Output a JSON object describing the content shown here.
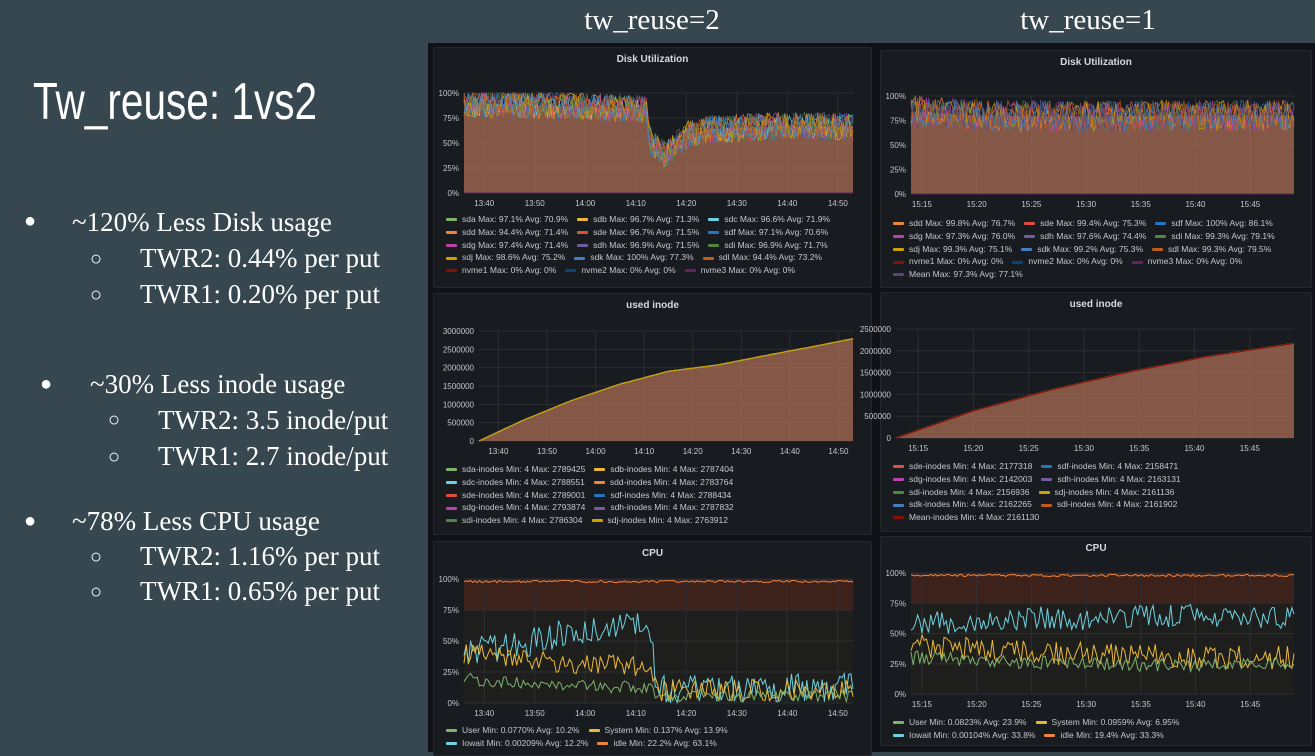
{
  "slide": {
    "title": "Tw_reuse: 1vs2",
    "col_left_header": "tw_reuse=2",
    "col_right_header": "tw_reuse=1",
    "bullets": [
      {
        "text": "~120% Less Disk usage",
        "subs": [
          "TWR2: 0.44% per put",
          "TWR1: 0.20% per put"
        ]
      },
      {
        "text": "~30% Less inode usage",
        "subs": [
          "TWR2: 3.5 inode/put",
          "TWR1: 2.7 inode/put"
        ]
      },
      {
        "text": "~78% Less CPU usage",
        "subs": [
          "TWR2: 1.16% per put",
          "TWR1: 0.65% per put"
        ]
      }
    ]
  },
  "chart_data": [
    {
      "id": "disk2",
      "type": "area",
      "title": "Disk Utilization",
      "xrange": [
        "13:36",
        "14:53"
      ],
      "xticks": [
        "13:40",
        "13:50",
        "14:00",
        "14:10",
        "14:20",
        "14:30",
        "14:40",
        "14:50"
      ],
      "ylim": [
        0,
        100
      ],
      "yticks": [
        "0%",
        "25%",
        "50%",
        "75%",
        "100%"
      ],
      "yvals": [
        0,
        25,
        50,
        75,
        100
      ],
      "profile": {
        "x": [
          "13:36",
          "13:45",
          "13:55",
          "14:05",
          "14:12",
          "14:13",
          "14:16",
          "14:20",
          "14:25",
          "14:35",
          "14:45",
          "14:53"
        ],
        "y": [
          90,
          89,
          87,
          85,
          84,
          50,
          38,
          58,
          64,
          66,
          67,
          66
        ]
      },
      "noise": 14,
      "legend": [
        {
          "label": "sda  Max: 97.1%  Avg: 70.9%",
          "color": "#7eb26d"
        },
        {
          "label": "sdb  Max: 96.7%  Avg: 71.3%",
          "color": "#eab839"
        },
        {
          "label": "sdc  Max: 96.6%  Avg: 71.9%",
          "color": "#6ed0e0"
        },
        {
          "label": "sdd  Max: 94.4%  Avg: 71.4%",
          "color": "#ef843c"
        },
        {
          "label": "sde  Max: 96.7%  Avg: 71.5%",
          "color": "#e24d42"
        },
        {
          "label": "sdf  Max: 97.1%  Avg: 70.6%",
          "color": "#1f78c1"
        },
        {
          "label": "sdg  Max: 97.4%  Avg: 71.4%",
          "color": "#ba43a9"
        },
        {
          "label": "sdh  Max: 96.9%  Avg: 71.5%",
          "color": "#705da0"
        },
        {
          "label": "sdi  Max: 96.9%  Avg: 71.7%",
          "color": "#508642"
        },
        {
          "label": "sdj  Max: 98.6%  Avg: 75.2%",
          "color": "#cca300"
        },
        {
          "label": "sdk  Max: 100%  Avg: 77.3%",
          "color": "#447ebc"
        },
        {
          "label": "sdl  Max: 94.4%  Avg: 73.2%",
          "color": "#c15c17"
        },
        {
          "label": "nvme1  Max: 0%  Avg: 0%",
          "color": "#890f02",
          "zero": true
        },
        {
          "label": "nvme2  Max: 0%  Avg: 0%",
          "color": "#0a437c",
          "zero": true
        },
        {
          "label": "nvme3  Max: 0%  Avg: 0%",
          "color": "#6d1f62",
          "zero": true
        }
      ]
    },
    {
      "id": "disk1",
      "type": "area",
      "title": "Disk Utilization",
      "xrange": [
        "15:14",
        "15:49"
      ],
      "xticks": [
        "15:15",
        "15:20",
        "15:25",
        "15:30",
        "15:35",
        "15:40",
        "15:45"
      ],
      "ylim": [
        0,
        100
      ],
      "yticks": [
        "0%",
        "25%",
        "50%",
        "75%",
        "100%"
      ],
      "yvals": [
        0,
        25,
        50,
        75,
        100
      ],
      "profile": {
        "x": [
          "15:14",
          "15:20",
          "15:30",
          "15:40",
          "15:49"
        ],
        "y": [
          84,
          80,
          79,
          80,
          80
        ]
      },
      "noise": 16,
      "legend": [
        {
          "label": "sdd  Max: 99.8%  Avg: 76.7%",
          "color": "#ef843c"
        },
        {
          "label": "sde  Max: 99.4%  Avg: 75.3%",
          "color": "#e24d42"
        },
        {
          "label": "sdf  Max: 100%  Avg: 86.1%",
          "color": "#1f78c1"
        },
        {
          "label": "sdg  Max: 97.3%  Avg: 76.0%",
          "color": "#ba43a9"
        },
        {
          "label": "sdh  Max: 97.6%  Avg: 74.4%",
          "color": "#705da0"
        },
        {
          "label": "sdi  Max: 99.3%  Avg: 79.1%",
          "color": "#508642"
        },
        {
          "label": "sdj  Max: 99.3%  Avg: 75.1%",
          "color": "#cca300"
        },
        {
          "label": "sdk  Max: 99.2%  Avg: 75.3%",
          "color": "#447ebc"
        },
        {
          "label": "sdl  Max: 99.3%  Avg: 79.5%",
          "color": "#c15c17"
        },
        {
          "label": "nvme1  Max: 0%  Avg: 0%",
          "color": "#890f02",
          "zero": true
        },
        {
          "label": "nvme2  Max: 0%  Avg: 0%",
          "color": "#0a437c",
          "zero": true
        },
        {
          "label": "nvme3  Max: 0%  Avg: 0%",
          "color": "#6d1f62",
          "zero": true
        },
        {
          "label": "Mean  Max: 97.3%  Avg: 77.1%",
          "color": "#584477"
        }
      ]
    },
    {
      "id": "inode2",
      "type": "area",
      "title": "used inode",
      "xrange": [
        "13:36",
        "14:53"
      ],
      "xticks": [
        "13:40",
        "13:50",
        "14:00",
        "14:10",
        "14:20",
        "14:30",
        "14:40",
        "14:50"
      ],
      "ylim": [
        0,
        3000000
      ],
      "yticks": [
        "0",
        "500000",
        "1000000",
        "1500000",
        "2000000",
        "2500000",
        "3000000"
      ],
      "yvals": [
        0,
        500000,
        1000000,
        1500000,
        2000000,
        2500000,
        3000000
      ],
      "profile": {
        "x": [
          "13:36",
          "13:45",
          "13:55",
          "14:05",
          "14:15",
          "14:25",
          "14:35",
          "14:45",
          "14:53"
        ],
        "y": [
          0,
          560000,
          1100000,
          1550000,
          1900000,
          2070000,
          2330000,
          2580000,
          2790000
        ]
      },
      "noise": 0,
      "legend": [
        {
          "label": "sda-inodes  Min: 4  Max: 2789425",
          "color": "#7eb26d"
        },
        {
          "label": "sdb-inodes  Min: 4  Max: 2787404",
          "color": "#eab839"
        },
        {
          "label": "sdc-inodes  Min: 4  Max: 2788551",
          "color": "#6ed0e0"
        },
        {
          "label": "sdd-inodes  Min: 4  Max: 2783764",
          "color": "#ef843c"
        },
        {
          "label": "sde-inodes  Min: 4  Max: 2789001",
          "color": "#e24d42"
        },
        {
          "label": "sdf-inodes  Min: 4  Max: 2788434",
          "color": "#1f78c1"
        },
        {
          "label": "sdg-inodes  Min: 4  Max: 2793874",
          "color": "#ba43a9"
        },
        {
          "label": "sdh-inodes  Min: 4  Max: 2787832",
          "color": "#705da0"
        },
        {
          "label": "sdi-inodes  Min: 4  Max: 2786304",
          "color": "#508642"
        },
        {
          "label": "sdj-inodes  Min: 4  Max: 2763912",
          "color": "#cca300"
        }
      ]
    },
    {
      "id": "inode1",
      "type": "area",
      "title": "used inode",
      "xrange": [
        "15:13",
        "15:49"
      ],
      "xticks": [
        "15:15",
        "15:20",
        "15:25",
        "15:30",
        "15:35",
        "15:40",
        "15:45"
      ],
      "ylim": [
        0,
        2500000
      ],
      "yticks": [
        "0",
        "500000",
        "1000000",
        "1500000",
        "2000000",
        "2500000"
      ],
      "yvals": [
        0,
        500000,
        1000000,
        1500000,
        2000000,
        2500000
      ],
      "profile": {
        "x": [
          "15:13",
          "15:20",
          "15:27",
          "15:34",
          "15:41",
          "15:49"
        ],
        "y": [
          0,
          620000,
          1100000,
          1510000,
          1860000,
          2170000
        ]
      },
      "noise": 0,
      "legend": [
        {
          "label": "sde-inodes  Min: 4  Max: 2177318",
          "color": "#e24d42"
        },
        {
          "label": "sdf-inodes  Min: 4  Max: 2158471",
          "color": "#1f78c1"
        },
        {
          "label": "sdg-inodes  Min: 4  Max: 2142003",
          "color": "#ba43a9"
        },
        {
          "label": "sdh-inodes  Min: 4  Max: 2163131",
          "color": "#705da0"
        },
        {
          "label": "sdi-inodes  Min: 4  Max: 2156936",
          "color": "#508642"
        },
        {
          "label": "sdj-inodes  Min: 4  Max: 2161136",
          "color": "#cca300"
        },
        {
          "label": "sdk-inodes  Min: 4  Max: 2162265",
          "color": "#447ebc"
        },
        {
          "label": "sdl-inodes  Min: 4  Max: 2161902",
          "color": "#c15c17"
        },
        {
          "label": "Mean-inodes  Min: 4  Max: 2161130",
          "color": "#890f02"
        }
      ]
    },
    {
      "id": "cpu2",
      "type": "line",
      "title": "CPU",
      "xrange": [
        "13:36",
        "14:53"
      ],
      "xticks": [
        "13:40",
        "13:50",
        "14:00",
        "14:10",
        "14:20",
        "14:30",
        "14:40",
        "14:50"
      ],
      "ylim": [
        0,
        100
      ],
      "yticks": [
        "0%",
        "25%",
        "50%",
        "75%",
        "100%"
      ],
      "yvals": [
        0,
        25,
        50,
        75,
        100
      ],
      "series": [
        {
          "name": "idle",
          "color": "#ef843c",
          "x": [
            "13:36",
            "14:53"
          ],
          "y": [
            98,
            98
          ],
          "noise": 1
        },
        {
          "name": "Iowait",
          "color": "#6ed0e0",
          "x": [
            "13:36",
            "13:45",
            "13:55",
            "14:05",
            "14:13",
            "14:14",
            "14:30",
            "14:53"
          ],
          "y": [
            42,
            45,
            55,
            62,
            60,
            10,
            12,
            12
          ],
          "noise": 12
        },
        {
          "name": "System",
          "color": "#eab839",
          "x": [
            "13:36",
            "13:45",
            "13:55",
            "14:05",
            "14:13",
            "14:14",
            "14:30",
            "14:53"
          ],
          "y": [
            40,
            36,
            32,
            30,
            28,
            10,
            10,
            10
          ],
          "noise": 9
        },
        {
          "name": "User",
          "color": "#7eb26d",
          "x": [
            "13:36",
            "13:45",
            "14:00",
            "14:13",
            "14:14",
            "14:53"
          ],
          "y": [
            20,
            16,
            14,
            12,
            6,
            6
          ],
          "noise": 5
        }
      ],
      "legend": [
        {
          "label": "User  Min: 0.0770%  Avg: 10.2%",
          "color": "#7eb26d"
        },
        {
          "label": "System  Min: 0.137%  Avg: 13.9%",
          "color": "#eab839"
        },
        {
          "label": "Iowait  Min: 0.00209%  Avg: 12.2%",
          "color": "#6ed0e0"
        },
        {
          "label": "idle  Min: 22.2%  Avg: 63.1%",
          "color": "#ef843c"
        }
      ]
    },
    {
      "id": "cpu1",
      "type": "line",
      "title": "CPU",
      "xrange": [
        "15:14",
        "15:49"
      ],
      "xticks": [
        "15:15",
        "15:20",
        "15:25",
        "15:30",
        "15:35",
        "15:40",
        "15:45"
      ],
      "ylim": [
        0,
        100
      ],
      "yticks": [
        "0%",
        "25%",
        "50%",
        "75%",
        "100%"
      ],
      "yvals": [
        0,
        25,
        50,
        75,
        100
      ],
      "series": [
        {
          "name": "idle",
          "color": "#ef843c",
          "x": [
            "15:14",
            "15:49"
          ],
          "y": [
            98,
            98
          ],
          "noise": 1
        },
        {
          "name": "Iowait",
          "color": "#6ed0e0",
          "x": [
            "15:14",
            "15:25",
            "15:40",
            "15:49"
          ],
          "y": [
            58,
            62,
            64,
            62
          ],
          "noise": 10
        },
        {
          "name": "System",
          "color": "#eab839",
          "x": [
            "15:14",
            "15:25",
            "15:40",
            "15:49"
          ],
          "y": [
            40,
            34,
            30,
            30
          ],
          "noise": 10
        },
        {
          "name": "User",
          "color": "#7eb26d",
          "x": [
            "15:14",
            "15:25",
            "15:40",
            "15:49"
          ],
          "y": [
            30,
            26,
            24,
            24
          ],
          "noise": 6
        }
      ],
      "legend": [
        {
          "label": "User  Min: 0.0823%  Avg: 23.9%",
          "color": "#7eb26d"
        },
        {
          "label": "System  Min: 0.0959%  Avg: 6.95%",
          "color": "#eab839"
        },
        {
          "label": "Iowait  Min: 0.00104%  Avg: 33.8%",
          "color": "#6ed0e0"
        },
        {
          "label": "idle  Min: 19.4%  Avg: 33.3%",
          "color": "#ef843c"
        }
      ]
    }
  ]
}
